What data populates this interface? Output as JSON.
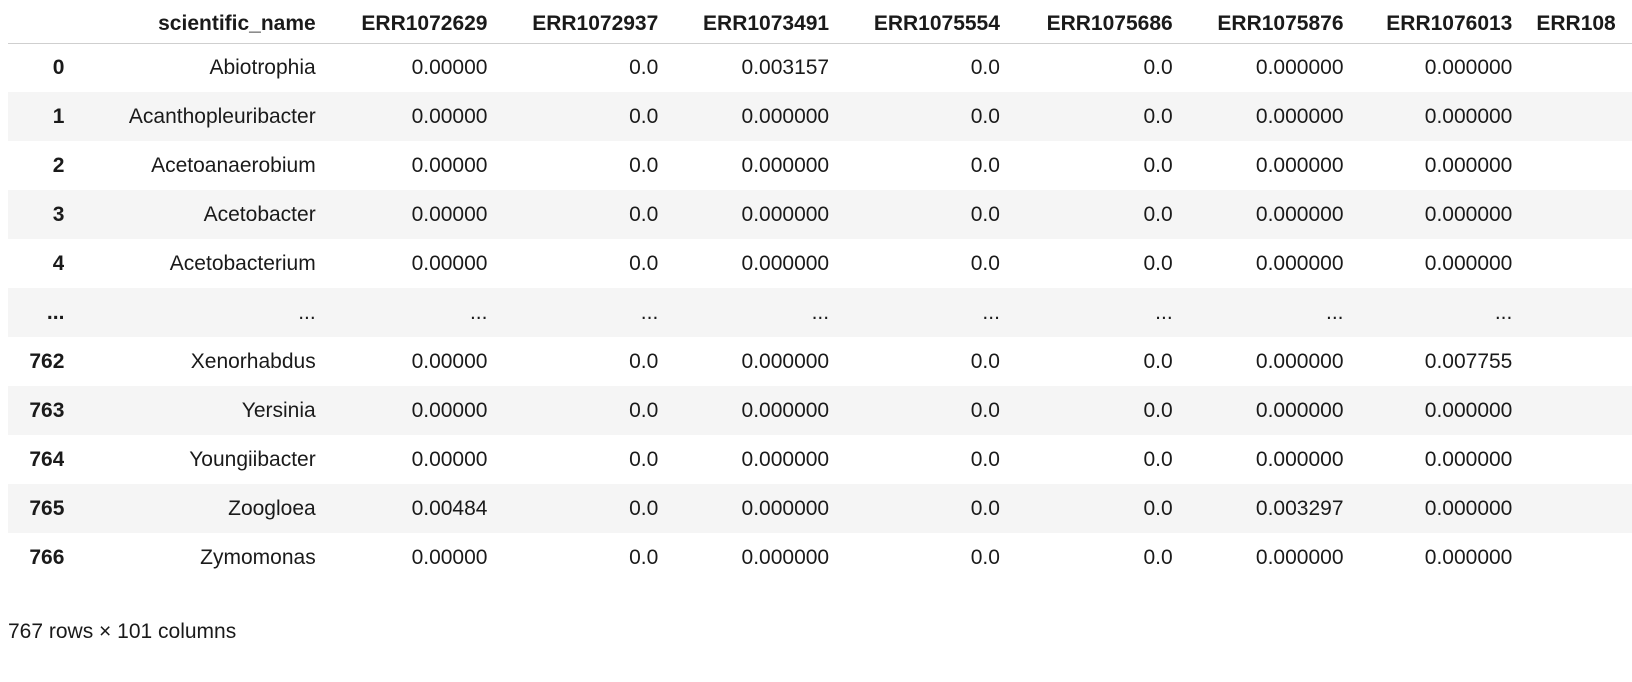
{
  "table": {
    "index_header": "",
    "columns": [
      "scientific_name",
      "ERR1072629",
      "ERR1072937",
      "ERR1073491",
      "ERR1075554",
      "ERR1075686",
      "ERR1075876",
      "ERR1076013",
      "ERR108"
    ],
    "rows": [
      {
        "index": "0",
        "cells": [
          "Abiotrophia",
          "0.00000",
          "0.0",
          "0.003157",
          "0.0",
          "0.0",
          "0.000000",
          "0.000000",
          ""
        ]
      },
      {
        "index": "1",
        "cells": [
          "Acanthopleuribacter",
          "0.00000",
          "0.0",
          "0.000000",
          "0.0",
          "0.0",
          "0.000000",
          "0.000000",
          ""
        ]
      },
      {
        "index": "2",
        "cells": [
          "Acetoanaerobium",
          "0.00000",
          "0.0",
          "0.000000",
          "0.0",
          "0.0",
          "0.000000",
          "0.000000",
          ""
        ]
      },
      {
        "index": "3",
        "cells": [
          "Acetobacter",
          "0.00000",
          "0.0",
          "0.000000",
          "0.0",
          "0.0",
          "0.000000",
          "0.000000",
          ""
        ]
      },
      {
        "index": "4",
        "cells": [
          "Acetobacterium",
          "0.00000",
          "0.0",
          "0.000000",
          "0.0",
          "0.0",
          "0.000000",
          "0.000000",
          ""
        ]
      },
      {
        "index": "...",
        "cells": [
          "...",
          "...",
          "...",
          "...",
          "...",
          "...",
          "...",
          "...",
          ""
        ]
      },
      {
        "index": "762",
        "cells": [
          "Xenorhabdus",
          "0.00000",
          "0.0",
          "0.000000",
          "0.0",
          "0.0",
          "0.000000",
          "0.007755",
          ""
        ]
      },
      {
        "index": "763",
        "cells": [
          "Yersinia",
          "0.00000",
          "0.0",
          "0.000000",
          "0.0",
          "0.0",
          "0.000000",
          "0.000000",
          ""
        ]
      },
      {
        "index": "764",
        "cells": [
          "Youngiibacter",
          "0.00000",
          "0.0",
          "0.000000",
          "0.0",
          "0.0",
          "0.000000",
          "0.000000",
          ""
        ]
      },
      {
        "index": "765",
        "cells": [
          "Zoogloea",
          "0.00484",
          "0.0",
          "0.000000",
          "0.0",
          "0.0",
          "0.003297",
          "0.000000",
          ""
        ]
      },
      {
        "index": "766",
        "cells": [
          "Zymomonas",
          "0.00000",
          "0.0",
          "0.000000",
          "0.0",
          "0.0",
          "0.000000",
          "0.000000",
          ""
        ]
      }
    ]
  },
  "footer": {
    "shape_text": "767 rows × 101 columns"
  }
}
